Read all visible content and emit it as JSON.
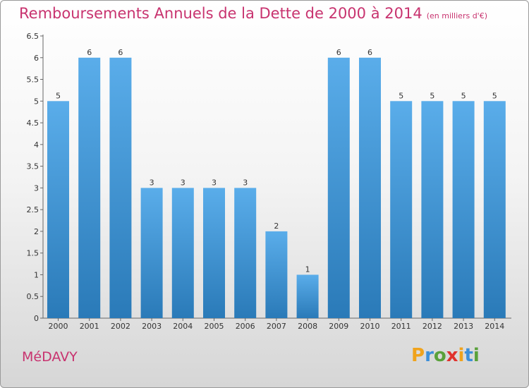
{
  "title": "Remboursements Annuels de la Dette de 2000 à 2014",
  "title_unit": "(en milliers d'€)",
  "commune": "MéDAVY",
  "logo": {
    "letters": [
      "P",
      "r",
      "o",
      "x",
      "i",
      "t",
      "i"
    ],
    "colors": [
      "#f0a31c",
      "#3c8fd9",
      "#5aa13b",
      "#e0322d",
      "#f0a31c",
      "#3c8fd9",
      "#5aa13b"
    ]
  },
  "colors": {
    "accent": "#c8336f",
    "bar_top": "#5aadea",
    "bar_bottom": "#2a7ab8"
  },
  "chart_data": {
    "type": "bar",
    "categories": [
      "2000",
      "2001",
      "2002",
      "2003",
      "2004",
      "2005",
      "2006",
      "2007",
      "2008",
      "2009",
      "2010",
      "2011",
      "2012",
      "2013",
      "2014"
    ],
    "values": [
      5,
      6,
      6,
      3,
      3,
      3,
      3,
      2,
      1,
      6,
      6,
      5,
      5,
      5,
      5
    ],
    "data_labels": [
      "5",
      "6",
      "6",
      "3",
      "3",
      "3",
      "3",
      "2",
      "1",
      "6",
      "6",
      "5",
      "5",
      "5",
      "5"
    ],
    "y_ticks": [
      "0",
      "0.5",
      "1",
      "1.5",
      "2",
      "2.5",
      "3",
      "3.5",
      "4",
      "4.5",
      "5",
      "5.5",
      "6",
      "6.5"
    ],
    "ylim": [
      0,
      6.5
    ],
    "grid": false
  }
}
